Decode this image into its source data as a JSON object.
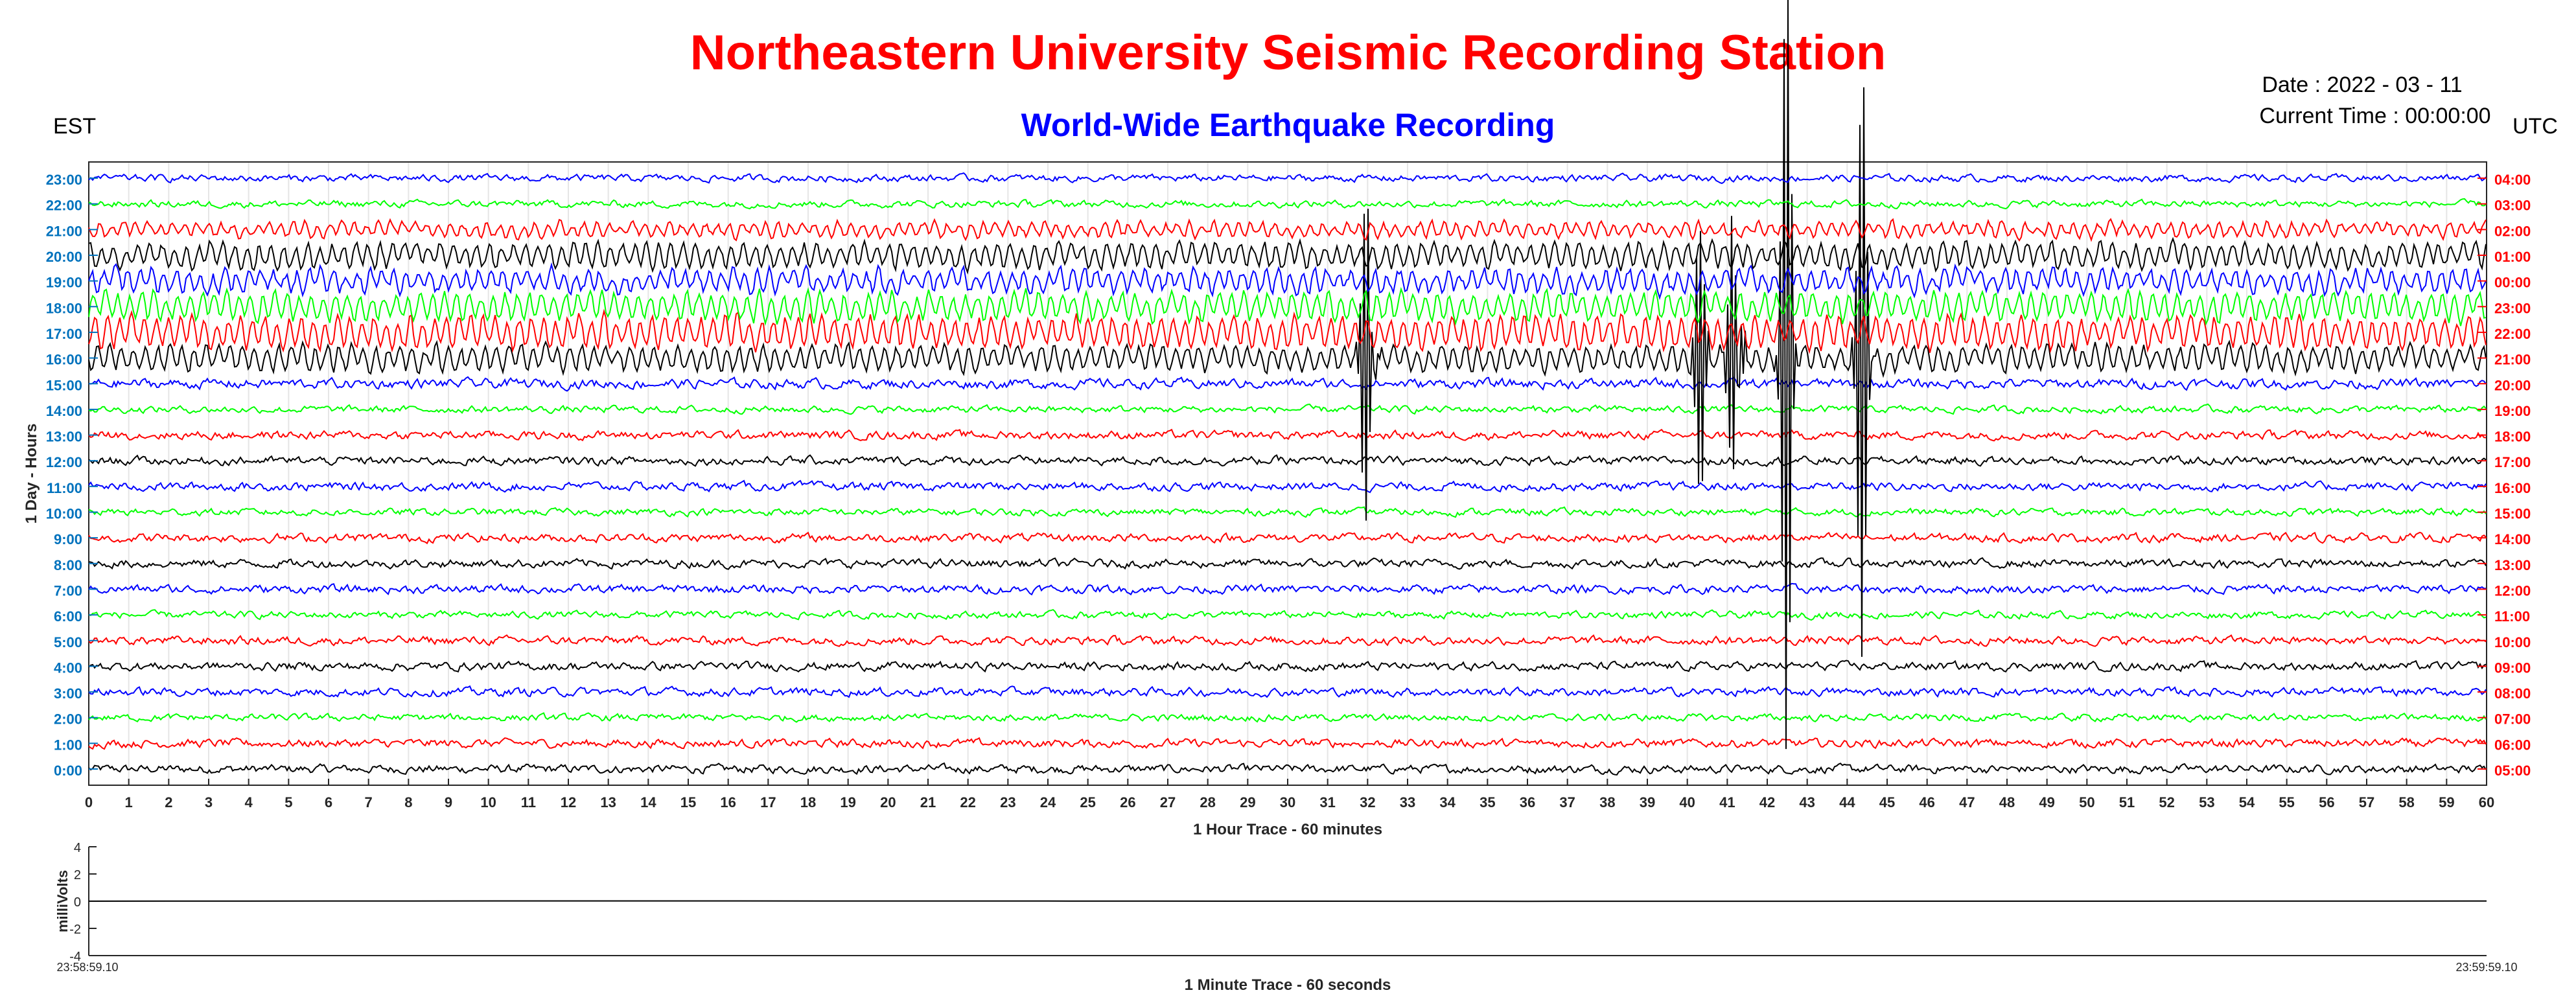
{
  "header": {
    "title": "Northeastern University Seismic Recording Station",
    "subtitle": "World-Wide Earthquake Recording",
    "date": "Date : 2022 - 03 - 11",
    "current_time": "Current Time : 00:00:00",
    "left_tz": "EST",
    "right_tz": "UTC"
  },
  "colors": {
    "title": "#ff0000",
    "subtitle": "#0000ff",
    "left_ticks": "#0072bd",
    "right_ticks": "#ff0000",
    "trace_cycle": [
      "#000000",
      "#ff0000",
      "#00ff00",
      "#0000ff"
    ]
  },
  "chart_data": [
    {
      "type": "line",
      "title": "",
      "xlabel": "1 Hour Trace - 60 minutes",
      "ylabel": "1 Day - Hours",
      "xlim": [
        0,
        60
      ],
      "x_ticks": [
        "0",
        "1",
        "2",
        "3",
        "4",
        "5",
        "6",
        "7",
        "8",
        "9",
        "10",
        "11",
        "12",
        "13",
        "14",
        "15",
        "16",
        "17",
        "18",
        "19",
        "20",
        "21",
        "22",
        "23",
        "24",
        "25",
        "26",
        "27",
        "28",
        "29",
        "30",
        "31",
        "32",
        "33",
        "34",
        "35",
        "36",
        "37",
        "38",
        "39",
        "40",
        "41",
        "42",
        "43",
        "44",
        "45",
        "46",
        "47",
        "48",
        "49",
        "50",
        "51",
        "52",
        "53",
        "54",
        "55",
        "56",
        "57",
        "58",
        "59",
        "60"
      ],
      "y_ticks_left": [
        "0:00",
        "1:00",
        "2:00",
        "3:00",
        "4:00",
        "5:00",
        "6:00",
        "7:00",
        "8:00",
        "9:00",
        "10:00",
        "11:00",
        "12:00",
        "13:00",
        "14:00",
        "15:00",
        "16:00",
        "17:00",
        "18:00",
        "19:00",
        "20:00",
        "21:00",
        "22:00",
        "23:00"
      ],
      "y_ticks_right": [
        "05:00",
        "06:00",
        "07:00",
        "08:00",
        "09:00",
        "10:00",
        "11:00",
        "12:00",
        "13:00",
        "14:00",
        "15:00",
        "16:00",
        "17:00",
        "18:00",
        "19:00",
        "20:00",
        "21:00",
        "22:00",
        "23:00",
        "00:00",
        "01:00",
        "02:00",
        "03:00",
        "04:00"
      ],
      "grid": true,
      "series": [
        {
          "hour": 0,
          "amplitude": 0.12,
          "oscillation": 0.0
        },
        {
          "hour": 1,
          "amplitude": 0.12,
          "oscillation": 0.0
        },
        {
          "hour": 2,
          "amplitude": 0.1,
          "oscillation": 0.0
        },
        {
          "hour": 3,
          "amplitude": 0.12,
          "oscillation": 0.0
        },
        {
          "hour": 4,
          "amplitude": 0.12,
          "oscillation": 0.0
        },
        {
          "hour": 5,
          "amplitude": 0.12,
          "oscillation": 0.0
        },
        {
          "hour": 6,
          "amplitude": 0.1,
          "oscillation": 0.0
        },
        {
          "hour": 7,
          "amplitude": 0.12,
          "oscillation": 0.0
        },
        {
          "hour": 8,
          "amplitude": 0.12,
          "oscillation": 0.0
        },
        {
          "hour": 9,
          "amplitude": 0.12,
          "oscillation": 0.0
        },
        {
          "hour": 10,
          "amplitude": 0.1,
          "oscillation": 0.0
        },
        {
          "hour": 11,
          "amplitude": 0.12,
          "oscillation": 0.0
        },
        {
          "hour": 12,
          "amplitude": 0.12,
          "oscillation": 0.0
        },
        {
          "hour": 13,
          "amplitude": 0.12,
          "oscillation": 0.0
        },
        {
          "hour": 14,
          "amplitude": 0.1,
          "oscillation": 0.0
        },
        {
          "hour": 15,
          "amplitude": 0.14,
          "oscillation": 0.0
        },
        {
          "hour": 16,
          "amplitude": 0.16,
          "oscillation": 0.35
        },
        {
          "hour": 17,
          "amplitude": 0.18,
          "oscillation": 0.45
        },
        {
          "hour": 18,
          "amplitude": 0.16,
          "oscillation": 0.4
        },
        {
          "hour": 19,
          "amplitude": 0.18,
          "oscillation": 0.3
        },
        {
          "hour": 20,
          "amplitude": 0.16,
          "oscillation": 0.35
        },
        {
          "hour": 21,
          "amplitude": 0.12,
          "oscillation": 0.2
        },
        {
          "hour": 22,
          "amplitude": 0.1,
          "oscillation": 0.0
        },
        {
          "hour": 23,
          "amplitude": 0.1,
          "oscillation": 0.0
        }
      ],
      "events": [
        {
          "hour": 16,
          "minute": 32.0,
          "peak": 2.5
        },
        {
          "hour": 16,
          "minute": 40.3,
          "peak": 1.6
        },
        {
          "hour": 16,
          "minute": 41.2,
          "peak": 2.8
        },
        {
          "hour": 16,
          "minute": 42.5,
          "peak": 4.5
        },
        {
          "hour": 16,
          "minute": 44.4,
          "peak": 3.6
        }
      ]
    },
    {
      "type": "line",
      "title": "",
      "xlabel": "1 Minute Trace  - 60 seconds",
      "ylabel": "milliVolts",
      "ylim": [
        -4,
        4
      ],
      "y_ticks": [
        "4",
        "2",
        "0",
        "-2",
        "-4"
      ],
      "x_start_label": "23:58:59.10",
      "x_end_label": "23:59:59.10",
      "values": [
        0,
        0.02,
        0.01,
        -0.01,
        0.0,
        0.01
      ]
    }
  ]
}
